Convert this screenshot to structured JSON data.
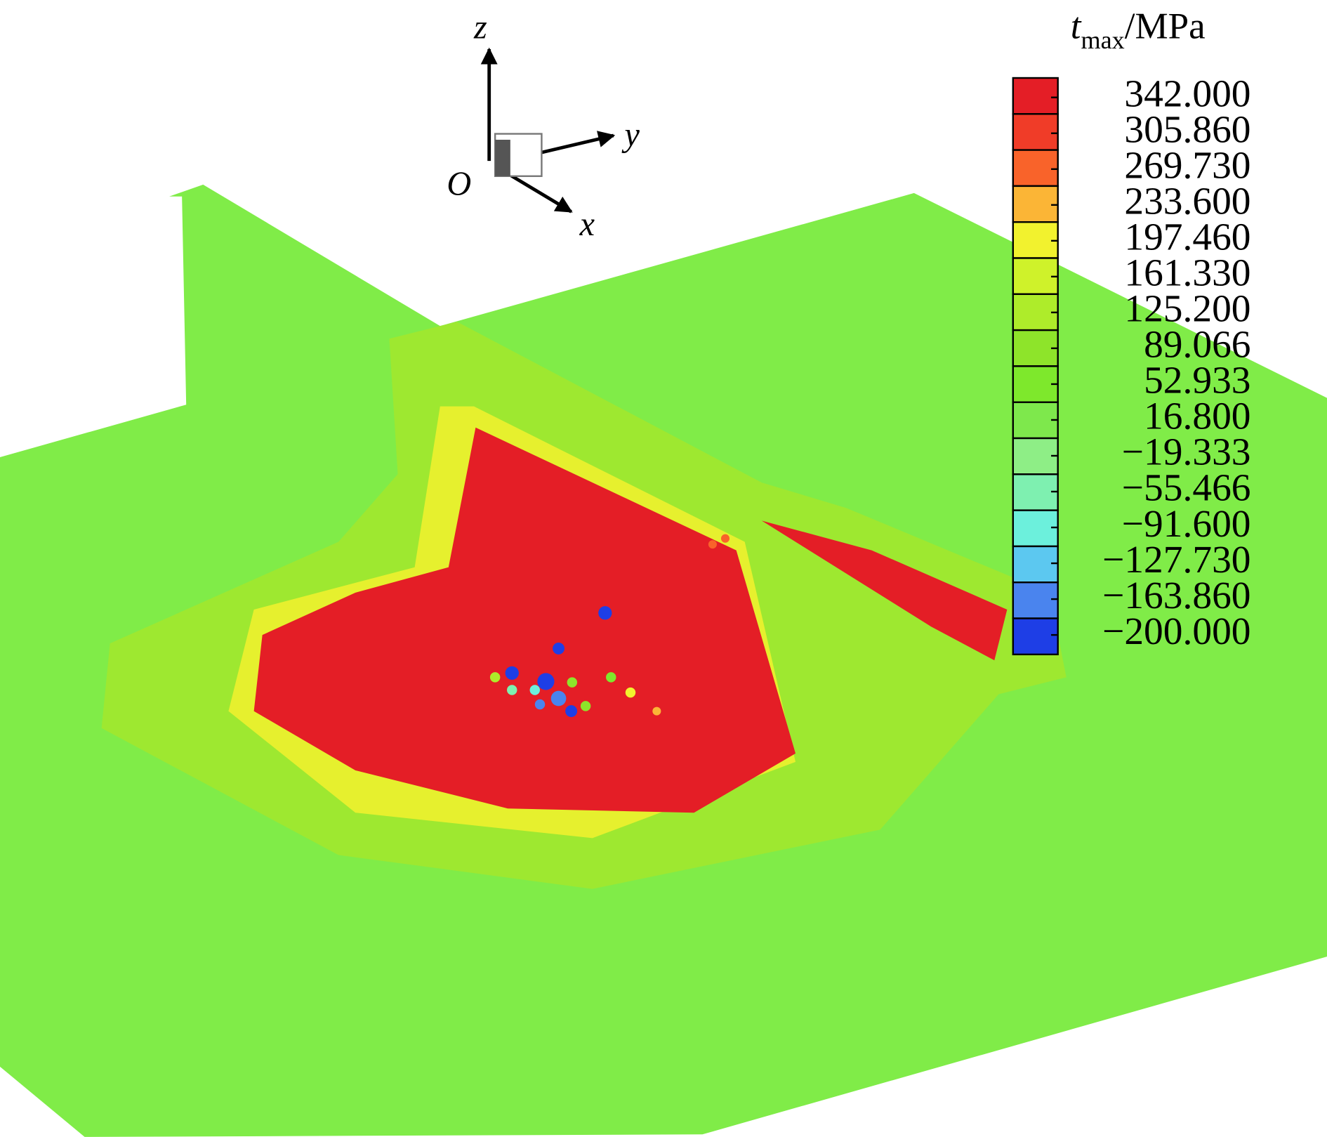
{
  "chart_data": {
    "type": "contour",
    "colorbar": {
      "title": {
        "symbol": "t",
        "subscript": "max",
        "unit": "/MPa"
      },
      "clim": [
        -200,
        342
      ],
      "ticks": [
        {
          "value": 342,
          "label": "342.000"
        },
        {
          "value": 305.86,
          "label": "305.860"
        },
        {
          "value": 269.73,
          "label": "269.730"
        },
        {
          "value": 233.6,
          "label": "233.600"
        },
        {
          "value": 197.46,
          "label": "197.460"
        },
        {
          "value": 161.33,
          "label": "161.330"
        },
        {
          "value": 125.2,
          "label": "125.200"
        },
        89.066,
        52.933,
        {
          "value": 16.8,
          "label": "16.800"
        },
        {
          "value": -19.333,
          "label": "−19.333"
        },
        {
          "value": -55.466,
          "label": "−55.466"
        },
        {
          "value": -91.6,
          "label": "−91.600"
        },
        {
          "value": -127.73,
          "label": "−127.730"
        },
        {
          "value": -163.86,
          "label": "−163.860"
        },
        {
          "value": -200,
          "label": "−200.000"
        }
      ],
      "colors": [
        "#e41e26",
        "#f03c28",
        "#f9632a",
        "#fbb536",
        "#f2f22e",
        "#cff22a",
        "#aeec2a",
        "#8ee42a",
        "#7ee82c",
        "#7ee84c",
        "#8eee86",
        "#7ef0b0",
        "#6cf0dc",
        "#5cc8f0",
        "#4a84ee",
        "#1e3ee6"
      ]
    },
    "axes": {
      "z": "z",
      "y": "y",
      "x": "x",
      "origin": "O"
    }
  }
}
